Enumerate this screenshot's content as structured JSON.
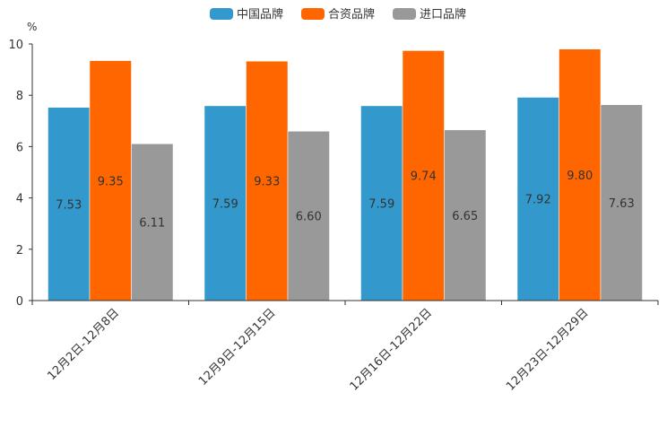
{
  "chart_data": {
    "type": "bar",
    "title": "",
    "xlabel": "",
    "ylabel": "%",
    "ylim": [
      0,
      10
    ],
    "yticks": [
      0,
      2,
      4,
      6,
      8,
      10
    ],
    "categories": [
      "12月2日-12月8日",
      "12月9日-12月15日",
      "12月16日-12月22日",
      "12月23日-12月29日"
    ],
    "series": [
      {
        "name": "中国品牌",
        "color": "#3399cc",
        "values": [
          7.53,
          7.59,
          7.59,
          7.92
        ],
        "labels": [
          "7.53",
          "7.59",
          "7.59",
          "7.92"
        ]
      },
      {
        "name": "合资品牌",
        "color": "#ff6600",
        "values": [
          9.35,
          9.33,
          9.74,
          9.8
        ],
        "labels": [
          "9.35",
          "9.33",
          "9.74",
          "9.80"
        ]
      },
      {
        "name": "进口品牌",
        "color": "#999999",
        "values": [
          6.11,
          6.6,
          6.65,
          7.63
        ],
        "labels": [
          "6.11",
          "6.60",
          "6.65",
          "7.63"
        ]
      }
    ],
    "legend_position": "top-center",
    "grid": false
  }
}
